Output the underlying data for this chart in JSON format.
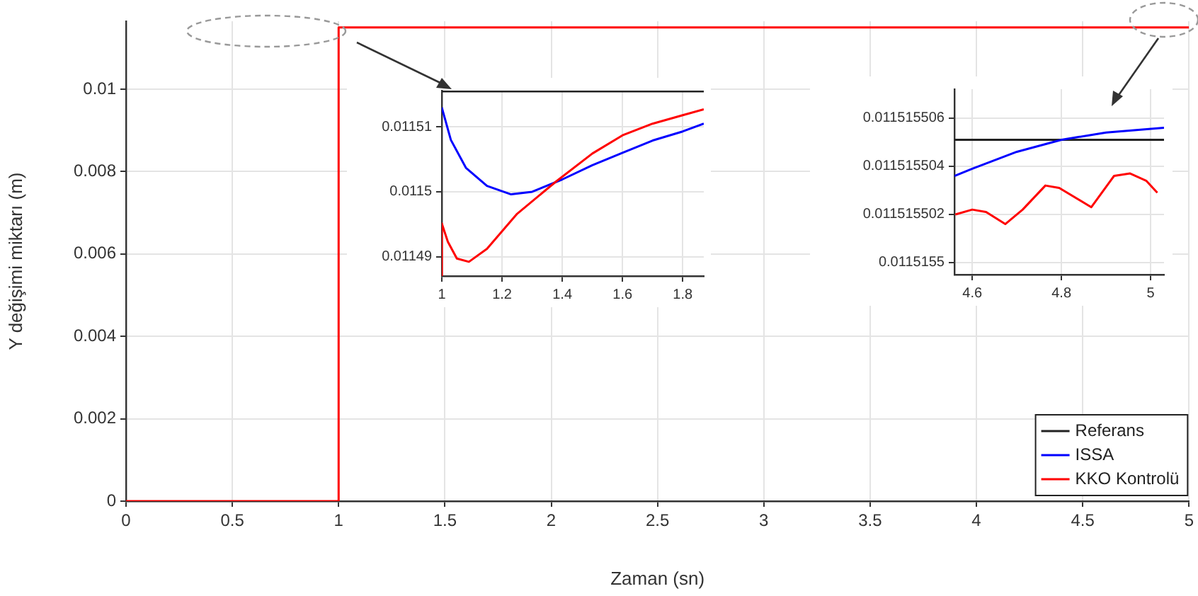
{
  "chart_data": [
    {
      "type": "line",
      "xlabel": "Zaman (sn)",
      "ylabel": "Y değişimi miktarı (m)",
      "xlim": [
        0,
        5
      ],
      "ylim": [
        0,
        0.01165
      ],
      "xticks": [
        0,
        0.5,
        1,
        1.5,
        2,
        2.5,
        3,
        3.5,
        4,
        4.5,
        5
      ],
      "yticks": [
        0,
        0.002,
        0.004,
        0.006,
        0.008,
        0.01
      ],
      "grid": true,
      "legend": "bottom right",
      "marker": "none",
      "line_style": "solid",
      "series": [
        {
          "name": "Referans",
          "color": "#222222"
        },
        {
          "name": "ISSA",
          "color": "#0000ff"
        },
        {
          "name": "KKO Kontrolü",
          "color": "#ff0000",
          "x": [
            0,
            1,
            1,
            5
          ],
          "values": [
            0,
            0,
            0.0115,
            0.0115
          ]
        }
      ]
    },
    {
      "type": "line",
      "xlim": [
        1,
        1.87
      ],
      "ylim": [
        0.011487,
        0.0115156
      ],
      "xticks": [
        1,
        1.2,
        1.4,
        1.6,
        1.8
      ],
      "yticks": [
        0.01149,
        0.0115,
        0.01151
      ],
      "grid": true,
      "marker": "none",
      "line_style": "solid",
      "series": [
        {
          "color": "#222222",
          "x": [
            1,
            1.87
          ],
          "values": [
            0.0115155,
            0.0115155
          ]
        },
        {
          "color": "#0000ff",
          "x": [
            1,
            1.03,
            1.08,
            1.15,
            1.23,
            1.3,
            1.4,
            1.5,
            1.6,
            1.7,
            1.8,
            1.87
          ],
          "values": [
            0.011513,
            0.011508,
            0.0115037,
            0.0115009,
            0.0114996,
            0.0115,
            0.0115019,
            0.0115041,
            0.011506,
            0.0115079,
            0.0115093,
            0.0115105
          ]
        },
        {
          "color": "#ff0000",
          "x": [
            1,
            1,
            1.02,
            1.05,
            1.09,
            1.15,
            1.25,
            1.38,
            1.5,
            1.6,
            1.7,
            1.8,
            1.87
          ],
          "values": [
            0.011487,
            0.0114951,
            0.0114923,
            0.0114897,
            0.0114892,
            0.0114912,
            0.0114966,
            0.0115016,
            0.0115059,
            0.0115087,
            0.0115105,
            0.0115118,
            0.0115127
          ]
        }
      ]
    },
    {
      "type": "line",
      "xlim": [
        4.56,
        5.03
      ],
      "ylim": [
        0.0115154995,
        0.0115155072
      ],
      "xticks": [
        4.6,
        4.8,
        5
      ],
      "yticks": [
        0.0115155,
        0.011515502,
        0.011515504,
        0.011515506
      ],
      "grid": true,
      "marker": "none",
      "line_style": "solid",
      "series": [
        {
          "color": "#222222",
          "x": [
            4.56,
            5.03
          ],
          "values": [
            0.0115155051,
            0.0115155051
          ]
        },
        {
          "color": "#0000ff",
          "x": [
            4.56,
            4.6,
            4.7,
            4.8,
            4.9,
            5.03
          ],
          "values": [
            0.0115155036,
            0.0115155039,
            0.0115155046,
            0.0115155051,
            0.0115155054,
            0.0115155056
          ]
        },
        {
          "color": "#ff0000",
          "x": [
            4.562,
            4.6,
            4.631,
            4.674,
            4.713,
            4.764,
            4.795,
            4.867,
            4.918,
            4.954,
            4.99,
            5.015
          ],
          "values": [
            0.011515502,
            0.0115155022,
            0.0115155021,
            0.0115155016,
            0.0115155022,
            0.0115155032,
            0.0115155031,
            0.0115155023,
            0.0115155036,
            0.0115155037,
            0.0115155034,
            0.0115155029
          ]
        }
      ]
    }
  ]
}
